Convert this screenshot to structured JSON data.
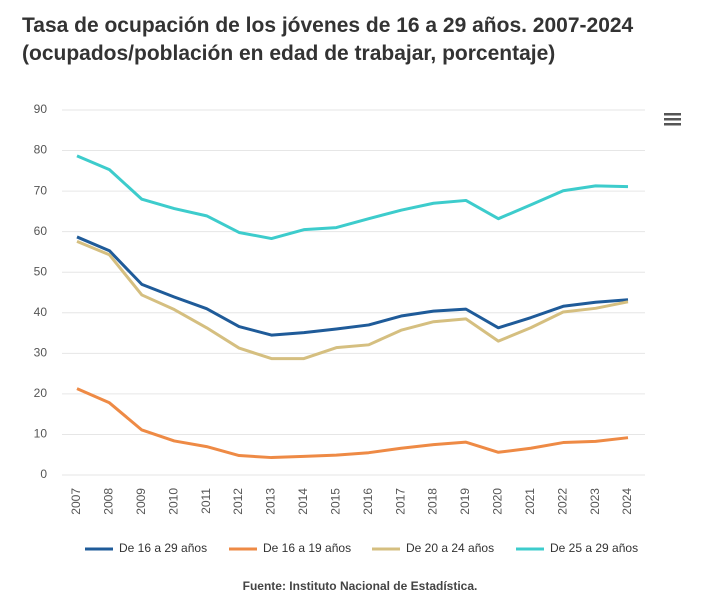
{
  "chart_data": {
    "type": "line",
    "title": "Tasa de ocupación de los jóvenes de 16 a 29 años. 2007-2024 (ocupados/población en edad de trabajar, porcentaje)",
    "source": "Fuente: Instituto Nacional de Estadística.",
    "categories": [
      "2007",
      "2008",
      "2009",
      "2010",
      "2011",
      "2012",
      "2013",
      "2014",
      "2015",
      "2016",
      "2017",
      "2018",
      "2019",
      "2020",
      "2021",
      "2022",
      "2023",
      "2024"
    ],
    "series": [
      {
        "name": "De 16 a 29 años",
        "color": "#1f5b99",
        "values": [
          58.7,
          55.3,
          47,
          43.9,
          41,
          36.6,
          34.5,
          35.1,
          36,
          37,
          39.2,
          40.4,
          40.9,
          36.3,
          38.8,
          41.6,
          42.6,
          43.2
        ]
      },
      {
        "name": "De 16 a 19 años",
        "color": "#ee8a45",
        "values": [
          21.3,
          17.8,
          11.1,
          8.4,
          7,
          4.8,
          4.3,
          4.6,
          4.9,
          5.5,
          6.6,
          7.5,
          8.1,
          5.6,
          6.6,
          8,
          8.3,
          9.2
        ]
      },
      {
        "name": "De 20 a 24 años",
        "color": "#d5bf80",
        "values": [
          57.6,
          54.3,
          44.4,
          40.8,
          36.3,
          31.3,
          28.7,
          28.7,
          31.4,
          32.1,
          35.7,
          37.8,
          38.5,
          33,
          36.3,
          40.2,
          41.1,
          42.7
        ]
      },
      {
        "name": "De 25 a 29 años",
        "color": "#3dcccc",
        "values": [
          78.7,
          75.3,
          68,
          65.7,
          63.9,
          59.8,
          58.3,
          60.5,
          61,
          63.2,
          65.3,
          67,
          67.7,
          63.2,
          66.6,
          70.1,
          71.3,
          71.1
        ]
      }
    ],
    "ylim": [
      0,
      90
    ],
    "yticks": [
      0,
      10,
      20,
      30,
      40,
      50,
      60,
      70,
      80,
      90
    ],
    "grid": true
  }
}
